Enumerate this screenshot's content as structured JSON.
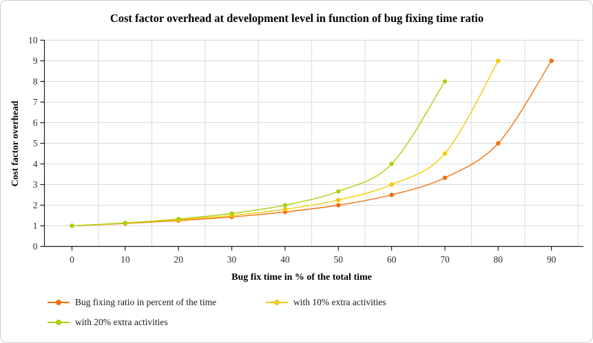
{
  "title": "Cost factor overhead at development level in function of bug fixing time ratio",
  "chart_data": {
    "type": "line",
    "title": "Cost factor overhead at development level in function of bug fixing time ratio",
    "xlabel": "Bug fix time in % of the total time",
    "ylabel": "Cost factor overhead",
    "categories": [
      "0",
      "10",
      "20",
      "30",
      "40",
      "50",
      "60",
      "70",
      "80",
      "90"
    ],
    "ylim": [
      0,
      10
    ],
    "ytick_step": 1,
    "grid": "on",
    "grid_color": "#d9d9d9",
    "axis_color": "#1a1a1a",
    "legend_position": "bottom-left",
    "line_style": "smoothed",
    "series": [
      {
        "name": "Bug fixing ratio in percent of the time",
        "color": "#f2700f",
        "values": [
          1,
          1.11,
          1.25,
          1.43,
          1.67,
          2,
          2.5,
          3.33,
          5,
          9
        ]
      },
      {
        "name": "with 10% extra activities",
        "color": "#f4cb06",
        "values": [
          1,
          1.13,
          1.29,
          1.5,
          1.8,
          2.25,
          3,
          4.5,
          9
        ]
      },
      {
        "name": "with 20% extra activities",
        "color": "#accf0c",
        "values": [
          1,
          1.14,
          1.33,
          1.6,
          2,
          2.67,
          4,
          8
        ]
      }
    ]
  },
  "legend": {
    "items": [
      {
        "label": "Bug fixing ratio in percent of the time"
      },
      {
        "label": "with 10% extra activities"
      },
      {
        "label": "with 20% extra activities"
      }
    ]
  }
}
